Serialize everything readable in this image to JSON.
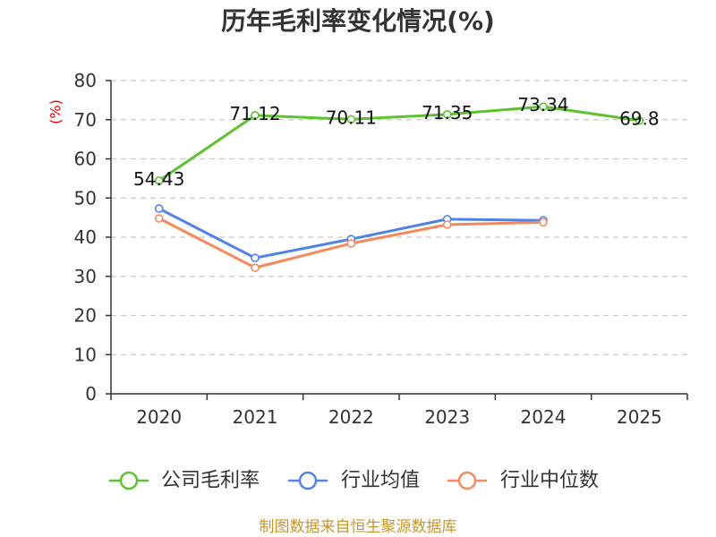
{
  "chart_data": {
    "type": "line",
    "title": "历年毛利率变化情况(%)",
    "xlabel": "",
    "ylabel": "(%)",
    "ylabel_color": "#dd0000",
    "categories": [
      "2020",
      "2021",
      "2022",
      "2023",
      "2024",
      "2025"
    ],
    "ylim": [
      0,
      80
    ],
    "yticks": [
      0,
      10,
      20,
      30,
      40,
      50,
      60,
      70,
      80
    ],
    "grid": true,
    "legend_position": "bottom",
    "series": [
      {
        "name": "公司毛利率",
        "color": "#5ec12f",
        "show_labels": true,
        "values": [
          54.43,
          71.12,
          70.11,
          71.35,
          73.34,
          69.8
        ]
      },
      {
        "name": "行业均值",
        "color": "#5082e5",
        "show_labels": false,
        "values": [
          47.3,
          34.7,
          39.5,
          44.6,
          44.3,
          null
        ]
      },
      {
        "name": "行业中位数",
        "color": "#f48a5c",
        "show_labels": false,
        "values": [
          44.8,
          32.2,
          38.4,
          43.2,
          43.8,
          null
        ]
      }
    ]
  },
  "footer": {
    "source": "制图数据来自恒生聚源数据库",
    "color": "#c8952c"
  }
}
